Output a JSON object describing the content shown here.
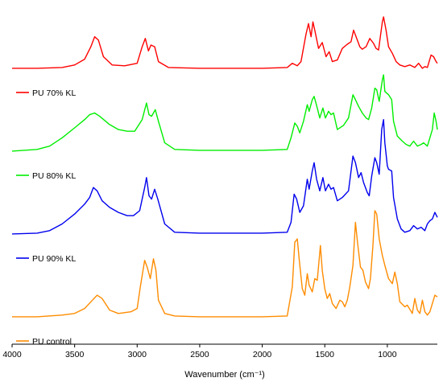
{
  "chart_data": {
    "type": "line",
    "xlabel": "Wavenumber (cm⁻¹)",
    "ylabel": "",
    "xlim": [
      4000,
      600
    ],
    "x_reversed": true,
    "x_ticks": [
      4000,
      3500,
      3000,
      2500,
      2000,
      1500,
      1000
    ],
    "y_axis_visible": false,
    "grid": false,
    "legend_placement": "left, below each spectrum",
    "series": [
      {
        "name": "PU 70% KL",
        "color": "#ff0000",
        "offset": 3.0,
        "points": [
          [
            4000,
            0.04
          ],
          [
            3800,
            0.04
          ],
          [
            3600,
            0.05
          ],
          [
            3500,
            0.08
          ],
          [
            3420,
            0.15
          ],
          [
            3370,
            0.3
          ],
          [
            3340,
            0.42
          ],
          [
            3310,
            0.38
          ],
          [
            3270,
            0.18
          ],
          [
            3200,
            0.08
          ],
          [
            3100,
            0.07
          ],
          [
            3000,
            0.1
          ],
          [
            2960,
            0.3
          ],
          [
            2935,
            0.4
          ],
          [
            2910,
            0.25
          ],
          [
            2890,
            0.32
          ],
          [
            2860,
            0.3
          ],
          [
            2830,
            0.12
          ],
          [
            2750,
            0.05
          ],
          [
            2500,
            0.04
          ],
          [
            2200,
            0.04
          ],
          [
            2000,
            0.04
          ],
          [
            1800,
            0.05
          ],
          [
            1760,
            0.1
          ],
          [
            1720,
            0.07
          ],
          [
            1690,
            0.12
          ],
          [
            1650,
            0.45
          ],
          [
            1630,
            0.58
          ],
          [
            1610,
            0.42
          ],
          [
            1595,
            0.6
          ],
          [
            1580,
            0.5
          ],
          [
            1550,
            0.28
          ],
          [
            1520,
            0.35
          ],
          [
            1490,
            0.18
          ],
          [
            1465,
            0.24
          ],
          [
            1440,
            0.12
          ],
          [
            1400,
            0.14
          ],
          [
            1360,
            0.28
          ],
          [
            1320,
            0.33
          ],
          [
            1290,
            0.36
          ],
          [
            1270,
            0.5
          ],
          [
            1250,
            0.42
          ],
          [
            1220,
            0.3
          ],
          [
            1200,
            0.27
          ],
          [
            1170,
            0.3
          ],
          [
            1140,
            0.4
          ],
          [
            1110,
            0.34
          ],
          [
            1090,
            0.28
          ],
          [
            1070,
            0.26
          ],
          [
            1040,
            0.6
          ],
          [
            1030,
            0.66
          ],
          [
            1010,
            0.5
          ],
          [
            990,
            0.3
          ],
          [
            960,
            0.22
          ],
          [
            930,
            0.12
          ],
          [
            900,
            0.08
          ],
          [
            860,
            0.06
          ],
          [
            820,
            0.08
          ],
          [
            780,
            0.05
          ],
          [
            750,
            0.1
          ],
          [
            720,
            0.04
          ],
          [
            700,
            0.06
          ],
          [
            680,
            0.05
          ],
          [
            650,
            0.2
          ],
          [
            630,
            0.18
          ],
          [
            610,
            0.12
          ],
          [
            600,
            0.1
          ]
        ]
      },
      {
        "name": "PU 80% KL",
        "color": "#00ee00",
        "offset": 2.0,
        "points": [
          [
            4000,
            0.04
          ],
          [
            3800,
            0.06
          ],
          [
            3700,
            0.1
          ],
          [
            3600,
            0.2
          ],
          [
            3500,
            0.32
          ],
          [
            3420,
            0.42
          ],
          [
            3380,
            0.48
          ],
          [
            3340,
            0.5
          ],
          [
            3300,
            0.46
          ],
          [
            3220,
            0.36
          ],
          [
            3150,
            0.3
          ],
          [
            3080,
            0.28
          ],
          [
            3020,
            0.28
          ],
          [
            2960,
            0.42
          ],
          [
            2925,
            0.62
          ],
          [
            2905,
            0.48
          ],
          [
            2885,
            0.46
          ],
          [
            2855,
            0.54
          ],
          [
            2830,
            0.4
          ],
          [
            2780,
            0.14
          ],
          [
            2700,
            0.06
          ],
          [
            2500,
            0.05
          ],
          [
            2200,
            0.05
          ],
          [
            2000,
            0.05
          ],
          [
            1800,
            0.06
          ],
          [
            1770,
            0.2
          ],
          [
            1740,
            0.38
          ],
          [
            1720,
            0.34
          ],
          [
            1700,
            0.26
          ],
          [
            1670,
            0.4
          ],
          [
            1640,
            0.6
          ],
          [
            1625,
            0.52
          ],
          [
            1600,
            0.66
          ],
          [
            1585,
            0.7
          ],
          [
            1560,
            0.56
          ],
          [
            1540,
            0.44
          ],
          [
            1515,
            0.56
          ],
          [
            1495,
            0.44
          ],
          [
            1470,
            0.52
          ],
          [
            1450,
            0.48
          ],
          [
            1430,
            0.5
          ],
          [
            1400,
            0.3
          ],
          [
            1350,
            0.35
          ],
          [
            1310,
            0.44
          ],
          [
            1275,
            0.72
          ],
          [
            1255,
            0.66
          ],
          [
            1230,
            0.58
          ],
          [
            1200,
            0.5
          ],
          [
            1170,
            0.44
          ],
          [
            1150,
            0.42
          ],
          [
            1125,
            0.56
          ],
          [
            1100,
            0.8
          ],
          [
            1085,
            0.78
          ],
          [
            1065,
            0.64
          ],
          [
            1040,
            0.9
          ],
          [
            1030,
            0.96
          ],
          [
            1020,
            0.76
          ],
          [
            990,
            0.72
          ],
          [
            965,
            0.66
          ],
          [
            950,
            0.4
          ],
          [
            920,
            0.22
          ],
          [
            880,
            0.16
          ],
          [
            850,
            0.12
          ],
          [
            820,
            0.1
          ],
          [
            790,
            0.16
          ],
          [
            760,
            0.1
          ],
          [
            730,
            0.12
          ],
          [
            710,
            0.14
          ],
          [
            680,
            0.1
          ],
          [
            660,
            0.2
          ],
          [
            640,
            0.3
          ],
          [
            625,
            0.5
          ],
          [
            610,
            0.4
          ],
          [
            600,
            0.3
          ]
        ]
      },
      {
        "name": "PU 90% KL",
        "color": "#0000ee",
        "offset": 1.0,
        "points": [
          [
            4000,
            0.04
          ],
          [
            3800,
            0.05
          ],
          [
            3700,
            0.08
          ],
          [
            3600,
            0.16
          ],
          [
            3500,
            0.28
          ],
          [
            3420,
            0.4
          ],
          [
            3380,
            0.48
          ],
          [
            3350,
            0.6
          ],
          [
            3320,
            0.56
          ],
          [
            3280,
            0.44
          ],
          [
            3220,
            0.36
          ],
          [
            3150,
            0.3
          ],
          [
            3080,
            0.26
          ],
          [
            3030,
            0.26
          ],
          [
            2980,
            0.32
          ],
          [
            2940,
            0.6
          ],
          [
            2925,
            0.72
          ],
          [
            2905,
            0.5
          ],
          [
            2885,
            0.46
          ],
          [
            2860,
            0.58
          ],
          [
            2835,
            0.46
          ],
          [
            2780,
            0.16
          ],
          [
            2700,
            0.06
          ],
          [
            2500,
            0.05
          ],
          [
            2200,
            0.05
          ],
          [
            2000,
            0.05
          ],
          [
            1800,
            0.06
          ],
          [
            1770,
            0.18
          ],
          [
            1745,
            0.52
          ],
          [
            1725,
            0.46
          ],
          [
            1700,
            0.3
          ],
          [
            1670,
            0.38
          ],
          [
            1640,
            0.7
          ],
          [
            1625,
            0.58
          ],
          [
            1600,
            0.8
          ],
          [
            1585,
            0.9
          ],
          [
            1565,
            0.7
          ],
          [
            1540,
            0.56
          ],
          [
            1515,
            0.72
          ],
          [
            1495,
            0.56
          ],
          [
            1470,
            0.64
          ],
          [
            1450,
            0.58
          ],
          [
            1430,
            0.6
          ],
          [
            1400,
            0.44
          ],
          [
            1360,
            0.48
          ],
          [
            1310,
            0.56
          ],
          [
            1275,
            0.98
          ],
          [
            1255,
            0.9
          ],
          [
            1230,
            0.72
          ],
          [
            1210,
            0.78
          ],
          [
            1190,
            0.66
          ],
          [
            1160,
            0.54
          ],
          [
            1145,
            0.5
          ],
          [
            1125,
            0.74
          ],
          [
            1100,
            0.96
          ],
          [
            1085,
            0.9
          ],
          [
            1065,
            0.76
          ],
          [
            1045,
            1.3
          ],
          [
            1030,
            1.42
          ],
          [
            1020,
            1.14
          ],
          [
            1000,
            0.86
          ],
          [
            990,
            0.82
          ],
          [
            965,
            0.8
          ],
          [
            950,
            0.48
          ],
          [
            920,
            0.22
          ],
          [
            890,
            0.1
          ],
          [
            860,
            0.06
          ],
          [
            820,
            0.08
          ],
          [
            790,
            0.14
          ],
          [
            760,
            0.1
          ],
          [
            730,
            0.12
          ],
          [
            700,
            0.08
          ],
          [
            680,
            0.16
          ],
          [
            660,
            0.2
          ],
          [
            640,
            0.22
          ],
          [
            620,
            0.3
          ],
          [
            600,
            0.24
          ]
        ]
      },
      {
        "name": "PU control",
        "color": "#ff8c00",
        "offset": 0.0,
        "points": [
          [
            4000,
            0.04
          ],
          [
            3800,
            0.04
          ],
          [
            3600,
            0.06
          ],
          [
            3500,
            0.08
          ],
          [
            3420,
            0.14
          ],
          [
            3370,
            0.22
          ],
          [
            3320,
            0.3
          ],
          [
            3280,
            0.26
          ],
          [
            3220,
            0.12
          ],
          [
            3150,
            0.08
          ],
          [
            3050,
            0.1
          ],
          [
            3000,
            0.14
          ],
          [
            2975,
            0.4
          ],
          [
            2940,
            0.72
          ],
          [
            2920,
            0.64
          ],
          [
            2895,
            0.5
          ],
          [
            2870,
            0.74
          ],
          [
            2850,
            0.6
          ],
          [
            2830,
            0.24
          ],
          [
            2780,
            0.08
          ],
          [
            2700,
            0.05
          ],
          [
            2500,
            0.04
          ],
          [
            2200,
            0.04
          ],
          [
            2000,
            0.04
          ],
          [
            1800,
            0.05
          ],
          [
            1760,
            0.4
          ],
          [
            1740,
            0.94
          ],
          [
            1720,
            0.98
          ],
          [
            1705,
            0.74
          ],
          [
            1680,
            0.38
          ],
          [
            1660,
            0.3
          ],
          [
            1640,
            0.56
          ],
          [
            1625,
            0.42
          ],
          [
            1600,
            0.34
          ],
          [
            1580,
            0.5
          ],
          [
            1560,
            0.48
          ],
          [
            1535,
            0.9
          ],
          [
            1520,
            0.6
          ],
          [
            1500,
            0.38
          ],
          [
            1480,
            0.26
          ],
          [
            1460,
            0.32
          ],
          [
            1440,
            0.2
          ],
          [
            1410,
            0.14
          ],
          [
            1380,
            0.24
          ],
          [
            1360,
            0.22
          ],
          [
            1340,
            0.16
          ],
          [
            1320,
            0.24
          ],
          [
            1300,
            0.4
          ],
          [
            1275,
            0.66
          ],
          [
            1255,
            1.18
          ],
          [
            1240,
            0.96
          ],
          [
            1215,
            0.64
          ],
          [
            1195,
            0.6
          ],
          [
            1175,
            0.46
          ],
          [
            1150,
            0.38
          ],
          [
            1135,
            0.5
          ],
          [
            1115,
            0.9
          ],
          [
            1100,
            1.32
          ],
          [
            1085,
            1.28
          ],
          [
            1065,
            0.98
          ],
          [
            1040,
            0.78
          ],
          [
            1020,
            0.66
          ],
          [
            990,
            0.5
          ],
          [
            960,
            0.44
          ],
          [
            940,
            0.58
          ],
          [
            920,
            0.44
          ],
          [
            900,
            0.22
          ],
          [
            860,
            0.16
          ],
          [
            840,
            0.18
          ],
          [
            800,
            0.08
          ],
          [
            780,
            0.26
          ],
          [
            760,
            0.12
          ],
          [
            740,
            0.08
          ],
          [
            720,
            0.24
          ],
          [
            700,
            0.1
          ],
          [
            680,
            0.06
          ],
          [
            660,
            0.1
          ],
          [
            640,
            0.2
          ],
          [
            620,
            0.3
          ],
          [
            600,
            0.28
          ]
        ]
      }
    ]
  }
}
